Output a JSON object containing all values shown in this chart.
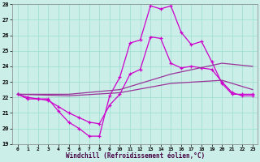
{
  "xlabel": "Windchill (Refroidissement éolien,°C)",
  "bg_color": "#cceee8",
  "grid_color": "#99ddcc",
  "line_color1": "#cc00cc",
  "line_color2": "#993399",
  "xlim": [
    -0.5,
    23.5
  ],
  "ylim": [
    19,
    28
  ],
  "yticks": [
    19,
    20,
    21,
    22,
    23,
    24,
    25,
    26,
    27,
    28
  ],
  "xticks": [
    0,
    1,
    2,
    3,
    4,
    5,
    6,
    7,
    8,
    9,
    10,
    11,
    12,
    13,
    14,
    15,
    16,
    17,
    18,
    19,
    20,
    21,
    22,
    23
  ],
  "series1_x": [
    0,
    1,
    2,
    3,
    4,
    5,
    6,
    7,
    8,
    9,
    10,
    11,
    12,
    13,
    14,
    15,
    16,
    17,
    18,
    19,
    20,
    21,
    22,
    23
  ],
  "series1_y": [
    22.2,
    22.0,
    21.9,
    21.9,
    21.1,
    20.4,
    20.0,
    19.5,
    19.5,
    22.1,
    23.3,
    25.5,
    25.7,
    27.9,
    27.7,
    27.9,
    26.2,
    25.4,
    25.6,
    24.3,
    22.9,
    22.2,
    22.2,
    22.2
  ],
  "series2_x": [
    0,
    1,
    2,
    3,
    4,
    5,
    6,
    7,
    8,
    9,
    10,
    11,
    12,
    13,
    14,
    15,
    16,
    17,
    18,
    19,
    20,
    21,
    22,
    23
  ],
  "series2_y": [
    22.2,
    21.9,
    21.9,
    21.8,
    21.4,
    21.0,
    20.7,
    20.4,
    20.3,
    21.5,
    22.2,
    23.5,
    23.8,
    25.9,
    25.8,
    24.2,
    23.9,
    24.0,
    23.9,
    23.8,
    23.0,
    22.3,
    22.1,
    22.1
  ],
  "series3_x": [
    0,
    5,
    10,
    15,
    20,
    23
  ],
  "series3_y": [
    22.2,
    22.2,
    22.5,
    23.5,
    24.2,
    24.0
  ],
  "series4_x": [
    0,
    5,
    10,
    15,
    20,
    23
  ],
  "series4_y": [
    22.2,
    22.1,
    22.3,
    22.9,
    23.1,
    22.5
  ]
}
